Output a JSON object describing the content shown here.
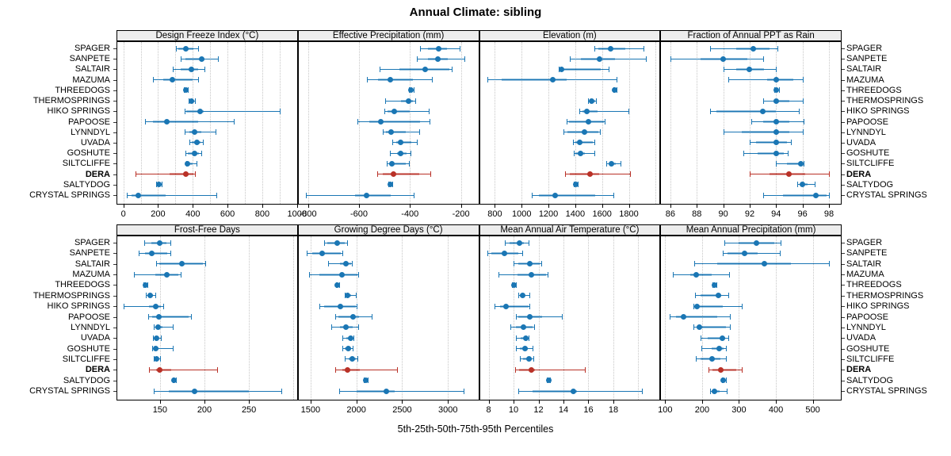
{
  "title": "Annual Climate: sibling",
  "caption": "5th-25th-50th-75th-95th Percentiles",
  "colors": {
    "point": "#1a76b4",
    "highlight": "#b93127",
    "grid": "#c6c6c6",
    "strip_bg": "#ededed",
    "border": "#000000"
  },
  "highlight_site": "DERA",
  "chart_data": {
    "type": "scatter",
    "subtype": "percentile_dotplot",
    "percentiles": [
      "5th",
      "25th",
      "50th",
      "75th",
      "95th"
    ],
    "legend_position": "none",
    "grid": "dotted-vertical",
    "sites": [
      "SPAGER",
      "SANPETE",
      "SALTAIR",
      "MAZUMA",
      "THREEDOGS",
      "THERMOSPRINGS",
      "HIKO SPRINGS",
      "PAPOOSE",
      "LYNNDYL",
      "UVADA",
      "GOSHUTE",
      "SILTCLIFFE",
      "DERA",
      "SALTYDOG",
      "CRYSTAL SPRINGS"
    ],
    "panels": [
      {
        "title": "Design Freeze Index (°C)",
        "grid_row": 0,
        "col": 0,
        "xlim": [
          -35,
          1000
        ],
        "tick_labels": [
          0,
          200,
          400,
          600,
          800,
          1000
        ],
        "gridlines": [
          0,
          100,
          200,
          300,
          400,
          500,
          600,
          700,
          800,
          900,
          1000
        ],
        "values": [
          [
            305,
            315,
            360,
            405,
            430
          ],
          [
            330,
            357,
            450,
            465,
            543
          ],
          [
            285,
            330,
            390,
            430,
            465
          ],
          [
            170,
            228,
            280,
            400,
            430
          ],
          [
            350,
            356,
            361,
            368,
            372
          ],
          [
            375,
            380,
            393,
            406,
            414
          ],
          [
            354,
            362,
            440,
            462,
            900
          ],
          [
            126,
            170,
            252,
            430,
            635
          ],
          [
            354,
            379,
            412,
            450,
            529
          ],
          [
            379,
            394,
            424,
            443,
            458
          ],
          [
            357,
            372,
            410,
            436,
            447
          ],
          [
            360,
            364,
            371,
            398,
            421
          ],
          [
            72,
            264,
            359,
            405,
            413
          ],
          [
            189,
            196,
            203,
            215,
            222
          ],
          [
            21,
            45,
            86,
            243,
            535
          ]
        ]
      },
      {
        "title": "Effective Precipitation (mm)",
        "grid_row": 0,
        "col": 1,
        "xlim": [
          -837,
          -132
        ],
        "tick_labels": [
          -800,
          -600,
          -400,
          -200
        ],
        "gridlines": [
          -800,
          -600,
          -400,
          -200
        ],
        "values": [
          [
            -362,
            -328,
            -289,
            -256,
            -205
          ],
          [
            -374,
            -328,
            -292,
            -251,
            -186
          ],
          [
            -520,
            -441,
            -341,
            -246,
            -236
          ],
          [
            -569,
            -525,
            -476,
            -390,
            -315
          ],
          [
            -405,
            -400,
            -397,
            -391,
            -386
          ],
          [
            -497,
            -436,
            -405,
            -390,
            -379
          ],
          [
            -501,
            -488,
            -462,
            -402,
            -327
          ],
          [
            -605,
            -559,
            -513,
            -360,
            -322
          ],
          [
            -508,
            -495,
            -474,
            -415,
            -364
          ],
          [
            -470,
            -455,
            -437,
            -395,
            -374
          ],
          [
            -478,
            -450,
            -438,
            -412,
            -398
          ],
          [
            -492,
            -482,
            -470,
            -415,
            -403
          ],
          [
            -528,
            -508,
            -464,
            -365,
            -320
          ],
          [
            -484,
            -480,
            -477,
            -472,
            -469
          ],
          [
            -807,
            -615,
            -570,
            -477,
            -386
          ]
        ]
      },
      {
        "title": "Elevation (m)",
        "grid_row": 0,
        "col": 2,
        "xlim": [
          688,
          2029
        ],
        "tick_labels": [
          800,
          1000,
          1200,
          1400,
          1600,
          1800
        ],
        "gridlines": [
          800,
          1000,
          1200,
          1400,
          1600,
          1800,
          2000
        ],
        "values": [
          [
            1545,
            1570,
            1663,
            1775,
            1910
          ],
          [
            1357,
            1441,
            1582,
            1695,
            1927
          ],
          [
            1275,
            1288,
            1297,
            1590,
            1650
          ],
          [
            745,
            852,
            1231,
            1335,
            1706
          ],
          [
            1684,
            1692,
            1696,
            1703,
            1710
          ],
          [
            1495,
            1505,
            1524,
            1547,
            1553
          ],
          [
            1431,
            1451,
            1484,
            1569,
            1798
          ],
          [
            1333,
            1353,
            1496,
            1615,
            1622
          ],
          [
            1313,
            1343,
            1471,
            1575,
            1582
          ],
          [
            1382,
            1402,
            1431,
            1530,
            1543
          ],
          [
            1386,
            1402,
            1437,
            1470,
            1540
          ],
          [
            1631,
            1655,
            1672,
            1705,
            1735
          ],
          [
            1324,
            1359,
            1510,
            1580,
            1810
          ],
          [
            1387,
            1398,
            1406,
            1412,
            1418
          ],
          [
            1078,
            1128,
            1251,
            1549,
            1682
          ]
        ]
      },
      {
        "title": "Fraction of Annual PPT as Rain",
        "grid_row": 0,
        "col": 3,
        "xlim": [
          85.3,
          98.9
        ],
        "tick_labels": [
          86,
          88,
          90,
          92,
          94,
          96,
          98
        ],
        "gridlines": [
          86,
          88,
          90,
          92,
          94,
          96,
          98
        ],
        "values": [
          [
            89.0,
            91.0,
            92.3,
            93.5,
            94.1
          ],
          [
            86.0,
            88.3,
            90.0,
            91.8,
            93.0
          ],
          [
            90.0,
            91.0,
            92.0,
            93.1,
            94.0
          ],
          [
            90.4,
            93.3,
            94.0,
            95.3,
            96.0
          ],
          [
            93.85,
            93.95,
            94.0,
            94.1,
            94.2
          ],
          [
            93.0,
            93.8,
            94.0,
            95.0,
            96.0
          ],
          [
            89.0,
            89.5,
            93.0,
            94.0,
            95.7
          ],
          [
            92.1,
            93.0,
            94.0,
            95.0,
            96.1
          ],
          [
            90.0,
            91.4,
            94.0,
            95.0,
            96.0
          ],
          [
            92.0,
            92.5,
            94.0,
            94.8,
            95.1
          ],
          [
            91.5,
            92.6,
            94.0,
            94.6,
            94.9
          ],
          [
            94.0,
            94.8,
            95.9,
            96.0,
            96.1
          ],
          [
            92.0,
            93.5,
            95.0,
            96.2,
            98.0
          ],
          [
            95.6,
            95.9,
            96.0,
            96.4,
            96.9
          ],
          [
            93.0,
            94.5,
            97.0,
            97.8,
            98.0
          ]
        ]
      },
      {
        "title": "Frost-Free Days",
        "grid_row": 1,
        "col": 0,
        "xlim": [
          102,
          304
        ],
        "tick_labels": [
          150,
          200,
          250
        ],
        "gridlines": [
          100,
          150,
          200,
          250,
          300
        ],
        "values": [
          [
            132,
            140,
            150,
            157,
            162
          ],
          [
            126,
            133,
            141,
            158,
            162
          ],
          [
            146,
            149,
            175,
            198,
            201
          ],
          [
            121,
            145,
            158,
            171,
            173
          ],
          [
            131,
            133,
            134,
            135,
            136
          ],
          [
            134,
            137,
            139,
            142,
            145
          ],
          [
            109,
            138,
            145,
            151,
            154
          ],
          [
            137,
            141,
            149,
            182,
            185
          ],
          [
            143,
            145,
            148,
            153,
            164
          ],
          [
            142,
            143,
            146,
            148,
            151
          ],
          [
            141,
            143,
            145,
            148,
            164
          ],
          [
            143,
            144,
            146,
            148,
            150
          ],
          [
            138,
            146,
            150,
            163,
            214
          ],
          [
            164.5,
            165.5,
            166,
            167,
            168
          ],
          [
            143,
            160,
            189,
            250,
            286
          ]
        ]
      },
      {
        "title": "Growing Degree Days (°C)",
        "grid_row": 1,
        "col": 1,
        "xlim": [
          1369,
          3331
        ],
        "tick_labels": [
          1500,
          2000,
          2500,
          3000
        ],
        "gridlines": [
          1500,
          2000,
          2500,
          3000
        ],
        "values": [
          [
            1650,
            1686,
            1795,
            1870,
            1900
          ],
          [
            1457,
            1515,
            1623,
            1830,
            1851
          ],
          [
            1690,
            1820,
            1890,
            1945,
            1953
          ],
          [
            1486,
            1600,
            1843,
            2010,
            2023
          ],
          [
            1775,
            1785,
            1792,
            1801,
            1809
          ],
          [
            1872,
            1884,
            1900,
            1940,
            1994
          ],
          [
            1594,
            1645,
            1823,
            1990,
            2006
          ],
          [
            1772,
            1800,
            1966,
            2030,
            2166
          ],
          [
            1723,
            1820,
            1886,
            1958,
            2020
          ],
          [
            1843,
            1890,
            1934,
            1955,
            1966
          ],
          [
            1851,
            1875,
            1914,
            1945,
            1957
          ],
          [
            1872,
            1914,
            1957,
            1994,
            2014
          ],
          [
            1766,
            1843,
            1906,
            2040,
            2443
          ],
          [
            2080,
            2090,
            2100,
            2110,
            2120
          ],
          [
            1815,
            2000,
            2330,
            2415,
            3170
          ]
        ]
      },
      {
        "title": "Mean Annual Air Temperature (°C)",
        "grid_row": 1,
        "col": 2,
        "xlim": [
          7.3,
          21.7
        ],
        "tick_labels": [
          8,
          10,
          12,
          14,
          16,
          18
        ],
        "gridlines": [
          8,
          10,
          12,
          14,
          16,
          18,
          20
        ],
        "values": [
          [
            9.3,
            9.7,
            10.5,
            10.8,
            11.2
          ],
          [
            7.9,
            8.2,
            9.3,
            10.4,
            10.7
          ],
          [
            10.0,
            10.4,
            11.3,
            12.1,
            12.2
          ],
          [
            8.8,
            10.3,
            11.4,
            12.6,
            12.7
          ],
          [
            9.9,
            10.0,
            10.05,
            10.15,
            10.2
          ],
          [
            10.4,
            10.5,
            10.7,
            10.9,
            11.3
          ],
          [
            8.5,
            8.9,
            9.4,
            11.2,
            11.3
          ],
          [
            10.2,
            10.4,
            11.3,
            12.3,
            13.9
          ],
          [
            9.75,
            10.2,
            10.8,
            11.5,
            11.65
          ],
          [
            10.2,
            10.6,
            11.0,
            11.15,
            11.2
          ],
          [
            10.2,
            10.5,
            10.9,
            11.15,
            11.5
          ],
          [
            10.5,
            10.75,
            11.25,
            11.45,
            11.6
          ],
          [
            10.1,
            10.45,
            11.45,
            11.7,
            15.7
          ],
          [
            12.65,
            12.75,
            12.8,
            12.9,
            12.95
          ],
          [
            10.4,
            11.5,
            14.8,
            15.1,
            20.3
          ]
        ]
      },
      {
        "title": "Mean Annual Precipitation (mm)",
        "grid_row": 1,
        "col": 3,
        "xlim": [
          89,
          576
        ],
        "tick_labels": [
          100,
          200,
          300,
          400,
          500
        ],
        "gridlines": [
          100,
          200,
          300,
          400,
          500
        ],
        "values": [
          [
            260,
            300,
            348,
            395,
            412
          ],
          [
            255,
            268,
            314,
            350,
            410
          ],
          [
            178,
            240,
            368,
            440,
            543
          ],
          [
            121,
            168,
            185,
            225,
            274
          ],
          [
            228,
            230,
            233,
            237,
            239
          ],
          [
            180,
            196,
            244,
            252,
            270
          ],
          [
            177,
            182,
            187,
            255,
            307
          ],
          [
            112,
            130,
            150,
            240,
            275
          ],
          [
            177,
            185,
            193,
            265,
            275
          ],
          [
            196,
            215,
            255,
            263,
            272
          ],
          [
            198,
            225,
            246,
            258,
            265
          ],
          [
            182,
            195,
            226,
            250,
            264
          ],
          [
            217,
            228,
            250,
            292,
            307
          ],
          [
            253,
            256,
            258,
            261,
            264
          ],
          [
            221,
            225,
            233,
            247,
            267
          ]
        ]
      }
    ]
  }
}
